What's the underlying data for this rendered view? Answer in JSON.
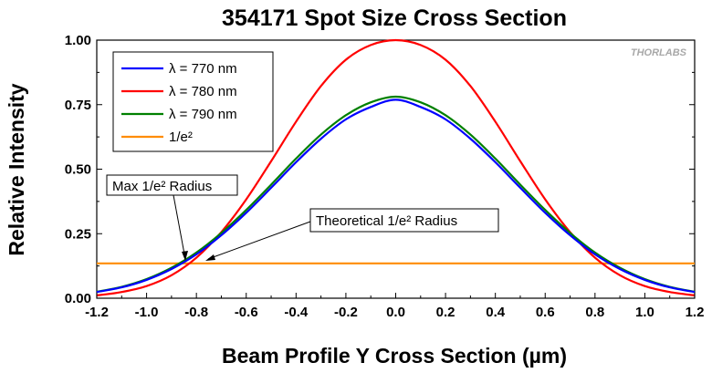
{
  "chart_data": {
    "type": "line",
    "title": "354171 Spot Size Cross Section",
    "xlabel": "Beam Profile Y Cross Section (µm)",
    "ylabel": "Relative Intensity",
    "xlim": [
      -1.2,
      1.2
    ],
    "ylim": [
      0.0,
      1.0
    ],
    "x_ticks": [
      "-1.2",
      "-1.0",
      "-0.8",
      "-0.6",
      "-0.4",
      "-0.2",
      "0.0",
      "0.2",
      "0.4",
      "0.6",
      "0.8",
      "1.0",
      "1.2"
    ],
    "y_ticks": [
      "0.00",
      "0.25",
      "0.50",
      "0.75",
      "1.00"
    ],
    "grid": false,
    "legend_position": "top-left",
    "x": [
      -1.2,
      -1.1,
      -1.0,
      -0.9,
      -0.8,
      -0.7,
      -0.6,
      -0.5,
      -0.4,
      -0.3,
      -0.2,
      -0.1,
      0.0,
      0.1,
      0.2,
      0.3,
      0.4,
      0.5,
      0.6,
      0.7,
      0.8,
      0.9,
      1.0,
      1.1,
      1.2
    ],
    "series": [
      {
        "name": "λ = 770 nm",
        "color": "#0000ff",
        "values": [
          0.024,
          0.042,
          0.071,
          0.113,
          0.17,
          0.244,
          0.331,
          0.428,
          0.527,
          0.618,
          0.693,
          0.741,
          0.769,
          0.741,
          0.693,
          0.618,
          0.527,
          0.428,
          0.331,
          0.244,
          0.17,
          0.113,
          0.071,
          0.042,
          0.024
        ]
      },
      {
        "name": "λ = 780 nm",
        "color": "#ff0000",
        "values": [
          0.011,
          0.024,
          0.047,
          0.089,
          0.157,
          0.256,
          0.383,
          0.531,
          0.684,
          0.822,
          0.924,
          0.981,
          1.0,
          0.981,
          0.924,
          0.822,
          0.684,
          0.531,
          0.383,
          0.256,
          0.157,
          0.089,
          0.047,
          0.024,
          0.011
        ]
      },
      {
        "name": "λ = 790 nm",
        "color": "#008000",
        "values": [
          0.025,
          0.044,
          0.074,
          0.118,
          0.177,
          0.253,
          0.342,
          0.44,
          0.541,
          0.634,
          0.709,
          0.759,
          0.781,
          0.759,
          0.709,
          0.634,
          0.541,
          0.44,
          0.342,
          0.253,
          0.177,
          0.118,
          0.074,
          0.044,
          0.025
        ]
      },
      {
        "name": "1/e²",
        "color": "#ff8c00",
        "values": [
          0.135,
          0.135,
          0.135,
          0.135,
          0.135,
          0.135,
          0.135,
          0.135,
          0.135,
          0.135,
          0.135,
          0.135,
          0.135,
          0.135,
          0.135,
          0.135,
          0.135,
          0.135,
          0.135,
          0.135,
          0.135,
          0.135,
          0.135,
          0.135,
          0.135
        ]
      }
    ],
    "annotations": [
      {
        "text": "Max 1/e² Radius",
        "points_to": [
          -0.86,
          0.135
        ]
      },
      {
        "text": "Theoretical 1/e² Radius",
        "points_to": [
          -0.82,
          0.135
        ]
      }
    ]
  },
  "watermark": "THORLABS"
}
